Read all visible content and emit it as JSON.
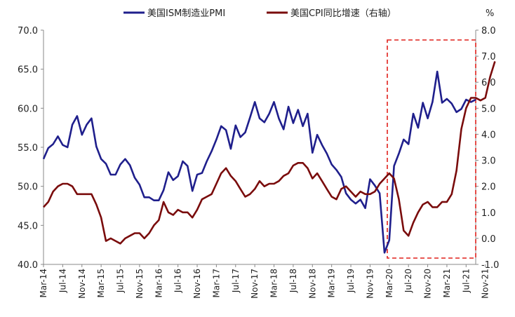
{
  "chart_data": {
    "type": "line",
    "title": "",
    "x_labels": [
      "Mar-14",
      "Jul-14",
      "Nov-14",
      "Mar-15",
      "Jul-15",
      "Nov-15",
      "Mar-16",
      "Jul-16",
      "Nov-16",
      "Mar-17",
      "Jul-17",
      "Nov-17",
      "Mar-18",
      "Jul-18",
      "Nov-18",
      "Mar-19",
      "Jul-19",
      "Nov-19",
      "Mar-20",
      "Jul-20",
      "Nov-20",
      "Mar-21",
      "Jul-21",
      "Nov-21"
    ],
    "y_left": {
      "ticks": [
        "40.0",
        "45.0",
        "50.0",
        "55.0",
        "60.0",
        "65.0",
        "70.0"
      ],
      "min": 40,
      "max": 70
    },
    "y_right": {
      "unit_label": "%",
      "ticks": [
        "-1.0",
        "0.0",
        "1.0",
        "2.0",
        "3.0",
        "4.0",
        "5.0",
        "6.0",
        "7.0",
        "8.0"
      ],
      "min": -1,
      "max": 8
    },
    "legend_position": "top",
    "series": [
      {
        "name": "美国ISM制造业PMI",
        "axis": "left",
        "color": "#1f1f8c",
        "values": [
          53.5,
          54.9,
          55.4,
          56.4,
          55.3,
          55.0,
          57.9,
          59.0,
          56.6,
          57.9,
          58.7,
          55.1,
          53.5,
          52.9,
          51.5,
          51.5,
          52.8,
          53.5,
          52.7,
          51.1,
          50.2,
          48.6,
          48.6,
          48.2,
          48.2,
          49.5,
          51.8,
          50.8,
          51.3,
          53.2,
          52.6,
          49.4,
          51.5,
          51.7,
          53.2,
          54.5,
          56.0,
          57.7,
          57.2,
          54.8,
          57.8,
          56.3,
          56.9,
          58.8,
          60.8,
          58.7,
          58.2,
          59.3,
          60.8,
          58.7,
          57.3,
          60.2,
          58.1,
          59.8,
          57.7,
          59.3,
          54.3,
          56.6,
          55.3,
          54.2,
          52.8,
          52.1,
          51.2,
          49.1,
          48.3,
          47.8,
          48.3,
          47.2,
          50.9,
          50.1,
          49.1,
          41.5,
          43.1,
          52.6,
          54.2,
          56.0,
          55.4,
          59.3,
          57.5,
          60.7,
          58.7,
          60.8,
          64.7,
          60.7,
          61.2,
          60.6,
          59.5,
          59.9,
          61.1,
          60.8,
          61.1
        ]
      },
      {
        "name": "美国CPI同比增速（右轴）",
        "axis": "right",
        "color": "#7a0c0c",
        "values": [
          1.2,
          1.4,
          1.8,
          2.0,
          2.1,
          2.1,
          2.0,
          1.7,
          1.7,
          1.7,
          1.7,
          1.3,
          0.8,
          -0.1,
          0.0,
          -0.1,
          -0.2,
          0.0,
          0.1,
          0.2,
          0.2,
          0.0,
          0.2,
          0.5,
          0.7,
          1.4,
          1.0,
          0.9,
          1.1,
          1.0,
          1.0,
          0.8,
          1.1,
          1.5,
          1.6,
          1.7,
          2.1,
          2.5,
          2.7,
          2.4,
          2.2,
          1.9,
          1.6,
          1.7,
          1.9,
          2.2,
          2.0,
          2.1,
          2.1,
          2.2,
          2.4,
          2.5,
          2.8,
          2.9,
          2.9,
          2.7,
          2.3,
          2.5,
          2.2,
          1.9,
          1.6,
          1.5,
          1.9,
          2.0,
          1.8,
          1.6,
          1.8,
          1.7,
          1.7,
          1.8,
          2.1,
          2.3,
          2.5,
          2.3,
          1.5,
          0.3,
          0.1,
          0.6,
          1.0,
          1.3,
          1.4,
          1.2,
          1.2,
          1.4,
          1.4,
          1.7,
          2.6,
          4.2,
          5.0,
          5.4,
          5.4,
          5.3,
          5.4,
          6.2,
          6.8
        ]
      }
    ]
  }
}
